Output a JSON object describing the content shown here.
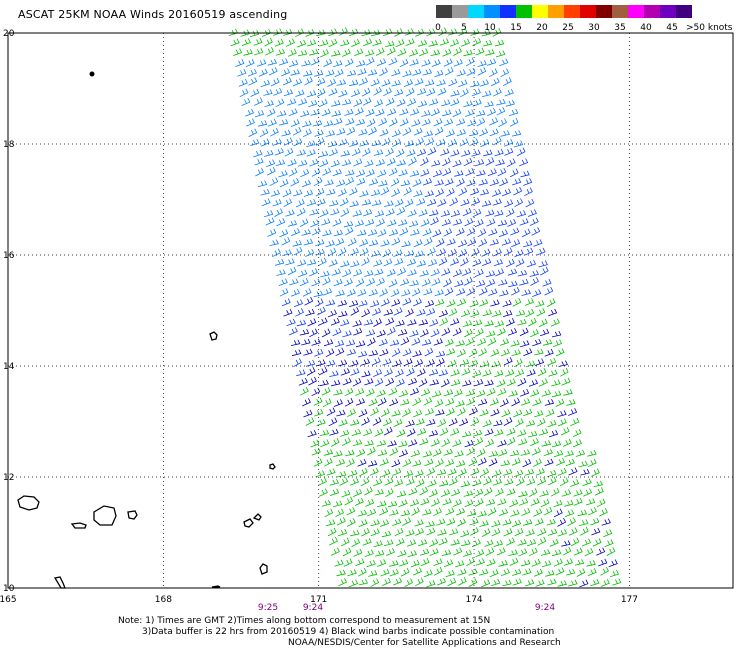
{
  "title": "ASCAT 25KM NOAA Winds 20160519 ascending",
  "colorbar": {
    "ticks": [
      "0",
      "5",
      "10",
      "15",
      "20",
      "25",
      "30",
      "35",
      "40",
      "45"
    ],
    "unit_label": ">50 knots",
    "colors": [
      "#404040",
      "#9a9a9a",
      "#00d8ff",
      "#0090ff",
      "#1030ff",
      "#00c000",
      "#ffff00",
      "#ffa000",
      "#ff4000",
      "#e00000",
      "#800000",
      "#a06040",
      "#ff00ff",
      "#b000b0",
      "#7000c0",
      "#400080"
    ]
  },
  "map": {
    "lat_labels": [
      "20",
      "18",
      "16",
      "14",
      "12",
      "10"
    ],
    "lon_labels": [
      "165",
      "168",
      "171",
      "174",
      "177"
    ],
    "time_labels": [
      "9:25",
      "9:24",
      "9:24"
    ],
    "barb_colors": {
      "low": "#00c000",
      "mid": "#0a7fff",
      "strong": "#1040ff",
      "deep": "#0000c0"
    }
  },
  "notes": {
    "line1": "Note: 1) Times are GMT 2)Times along bottom correspond to measurement at 15N",
    "line2": "3)Data buffer is 22 hrs from 20160519 4) Black wind barbs indicate possible contamination",
    "line3": "NOAA/NESDIS/Center for Satellite Applications and Research"
  }
}
